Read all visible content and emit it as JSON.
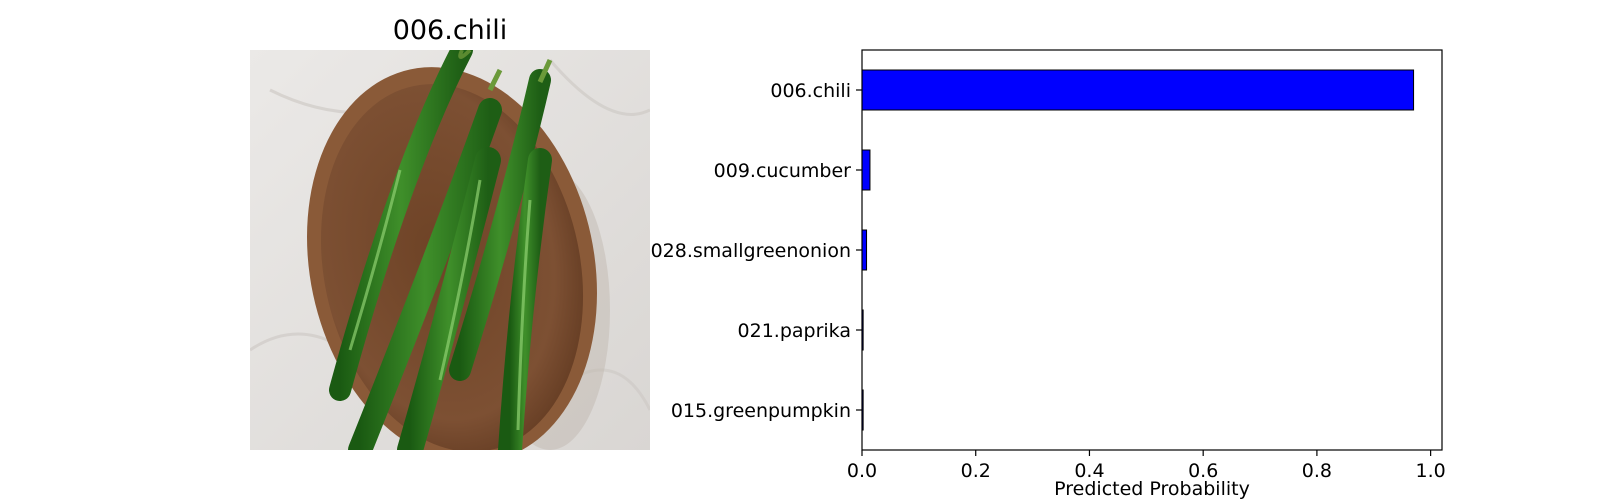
{
  "image_panel": {
    "title": "006.chili",
    "photo_subject": "green-chilies-on-wooden-plate"
  },
  "chart_data": {
    "type": "bar",
    "orientation": "horizontal",
    "categories": [
      "006.chili",
      "009.cucumber",
      "028.smallgreenonion",
      "021.paprika",
      "015.greenpumpkin"
    ],
    "values": [
      0.97,
      0.014,
      0.008,
      0.002,
      0.002
    ],
    "xlabel": "Predicted Probability",
    "ylabel": "",
    "title": "",
    "xlim": [
      0.0,
      1.02
    ],
    "xticks": [
      0.0,
      0.2,
      0.4,
      0.6,
      0.8,
      1.0
    ],
    "xtick_labels": [
      "0.0",
      "0.2",
      "0.4",
      "0.6",
      "0.8",
      "1.0"
    ],
    "bar_color": "#0000ff",
    "edge_color": "#000000",
    "grid": false
  }
}
